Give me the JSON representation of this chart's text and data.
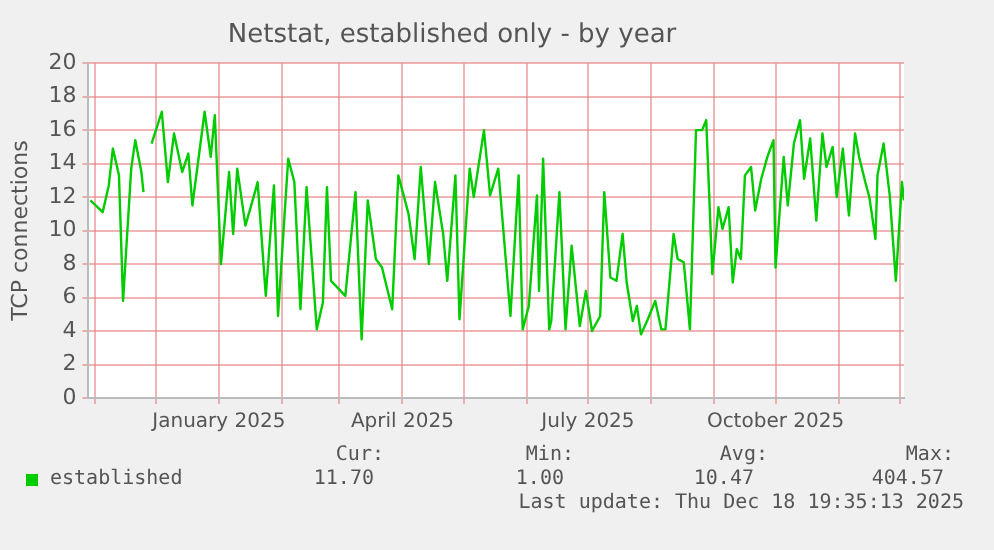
{
  "chart_data": {
    "type": "line",
    "title": "Netstat, established only - by year",
    "ylabel": "TCP connections",
    "x": [
      "2024-10-30",
      "2024-11-05",
      "2024-11-08",
      "2024-11-10",
      "2024-11-13",
      "2024-11-15",
      "2024-11-19",
      "2024-11-21",
      "2024-11-24",
      "2024-11-25",
      "2024-11-27",
      "2024-11-29",
      "2024-12-04",
      "2024-12-07",
      "2024-12-10",
      "2024-12-14",
      "2024-12-17",
      "2024-12-19",
      "2024-12-25",
      "2024-12-28",
      "2024-12-30",
      "2025-01-02",
      "2025-01-06",
      "2025-01-08",
      "2025-01-10",
      "2025-01-14",
      "2025-01-18",
      "2025-01-20",
      "2025-01-24",
      "2025-01-28",
      "2025-01-30",
      "2025-02-04",
      "2025-02-07",
      "2025-02-10",
      "2025-02-13",
      "2025-02-18",
      "2025-02-21",
      "2025-02-23",
      "2025-02-25",
      "2025-03-04",
      "2025-03-09",
      "2025-03-12",
      "2025-03-15",
      "2025-03-19",
      "2025-03-22",
      "2025-03-27",
      "2025-03-30",
      "2025-04-04",
      "2025-04-07",
      "2025-04-10",
      "2025-04-14",
      "2025-04-17",
      "2025-04-21",
      "2025-04-23",
      "2025-04-27",
      "2025-04-29",
      "2025-05-04",
      "2025-05-06",
      "2025-05-11",
      "2025-05-14",
      "2025-05-18",
      "2025-05-24",
      "2025-05-28",
      "2025-05-30",
      "2025-06-02",
      "2025-06-06",
      "2025-06-07",
      "2025-06-09",
      "2025-06-12",
      "2025-06-13",
      "2025-06-17",
      "2025-06-20",
      "2025-06-23",
      "2025-06-27",
      "2025-06-30",
      "2025-07-03",
      "2025-07-07",
      "2025-07-09",
      "2025-07-12",
      "2025-07-15",
      "2025-07-18",
      "2025-07-20",
      "2025-07-23",
      "2025-07-25",
      "2025-07-27",
      "2025-07-30",
      "2025-08-03",
      "2025-08-06",
      "2025-08-08",
      "2025-08-12",
      "2025-08-14",
      "2025-08-17",
      "2025-08-20",
      "2025-08-23",
      "2025-08-26",
      "2025-08-28",
      "2025-08-31",
      "2025-09-03",
      "2025-09-05",
      "2025-09-08",
      "2025-09-10",
      "2025-09-12",
      "2025-09-14",
      "2025-09-16",
      "2025-09-19",
      "2025-09-21",
      "2025-09-24",
      "2025-09-27",
      "2025-09-30",
      "2025-10-01",
      "2025-10-05",
      "2025-10-07",
      "2025-10-10",
      "2025-10-13",
      "2025-10-15",
      "2025-10-18",
      "2025-10-21",
      "2025-10-24",
      "2025-10-26",
      "2025-10-29",
      "2025-10-31",
      "2025-11-03",
      "2025-11-06",
      "2025-11-09",
      "2025-11-11",
      "2025-11-14",
      "2025-11-16",
      "2025-11-19",
      "2025-11-20",
      "2025-11-23",
      "2025-11-26",
      "2025-11-29",
      "2025-12-02",
      "2025-12-03"
    ],
    "series": [
      {
        "name": "established",
        "color": "#00cc00",
        "values": [
          11.8,
          11.1,
          12.7,
          14.9,
          13.3,
          5.8,
          13.7,
          15.4,
          13.5,
          12.3,
          null,
          15.2,
          17.1,
          12.9,
          15.8,
          13.5,
          14.6,
          11.5,
          17.1,
          14.4,
          16.9,
          8.0,
          13.5,
          9.8,
          13.7,
          10.3,
          12.0,
          12.9,
          6.1,
          12.7,
          4.9,
          14.3,
          12.9,
          5.3,
          12.6,
          4.1,
          5.7,
          12.6,
          7.0,
          6.1,
          12.3,
          3.5,
          11.8,
          8.3,
          7.8,
          5.3,
          13.3,
          11.0,
          8.3,
          13.8,
          8.0,
          12.9,
          9.8,
          7.0,
          13.3,
          4.7,
          13.7,
          12.0,
          16.0,
          12.1,
          13.7,
          4.9,
          13.3,
          4.1,
          5.5,
          12.1,
          6.4,
          14.3,
          4.1,
          4.6,
          12.3,
          4.1,
          9.1,
          4.3,
          6.4,
          4.0,
          4.9,
          12.3,
          7.2,
          7.0,
          9.8,
          6.9,
          4.6,
          5.5,
          3.8,
          4.6,
          5.8,
          4.1,
          4.1,
          9.8,
          8.3,
          8.1,
          4.1,
          16.0,
          16.0,
          16.6,
          7.4,
          11.4,
          10.1,
          11.4,
          6.9,
          8.9,
          8.3,
          13.3,
          13.8,
          11.2,
          13.1,
          14.4,
          15.4,
          7.8,
          14.4,
          11.5,
          15.2,
          16.6,
          13.1,
          15.5,
          10.6,
          15.8,
          13.8,
          15.0,
          12.0,
          14.9,
          10.9,
          15.8,
          14.4,
          12.9,
          12.0,
          9.5,
          13.3,
          15.2,
          12.1,
          7.0,
          12.9,
          11.8
        ]
      }
    ],
    "xlim": [
      "2024-10-29",
      "2025-12-03"
    ],
    "xticks": [
      {
        "value": "2024-11-01",
        "label": null
      },
      {
        "value": "2024-12-01",
        "label": null
      },
      {
        "value": "2025-01-01",
        "label": "January 2025"
      },
      {
        "value": "2025-02-01",
        "label": null
      },
      {
        "value": "2025-03-01",
        "label": null
      },
      {
        "value": "2025-04-01",
        "label": "April 2025"
      },
      {
        "value": "2025-05-01",
        "label": null
      },
      {
        "value": "2025-06-01",
        "label": null
      },
      {
        "value": "2025-07-01",
        "label": "July 2025"
      },
      {
        "value": "2025-08-01",
        "label": null
      },
      {
        "value": "2025-09-01",
        "label": null
      },
      {
        "value": "2025-10-01",
        "label": "October 2025"
      },
      {
        "value": "2025-11-01",
        "label": null
      },
      {
        "value": "2025-12-01",
        "label": null
      }
    ],
    "ylim": [
      0,
      20
    ],
    "yticks": [
      0,
      2,
      4,
      6,
      8,
      10,
      12,
      14,
      16,
      18,
      20
    ],
    "grid": true,
    "legend": "bottom",
    "marker": "none",
    "line_style": "solid",
    "annotations": [
      "Cur:",
      "11.70",
      "Min:",
      "1.00",
      "Avg:",
      "10.47",
      "Max:",
      "404.57",
      "Last update: Thu Dec 18 19:35:13 2025"
    ]
  }
}
